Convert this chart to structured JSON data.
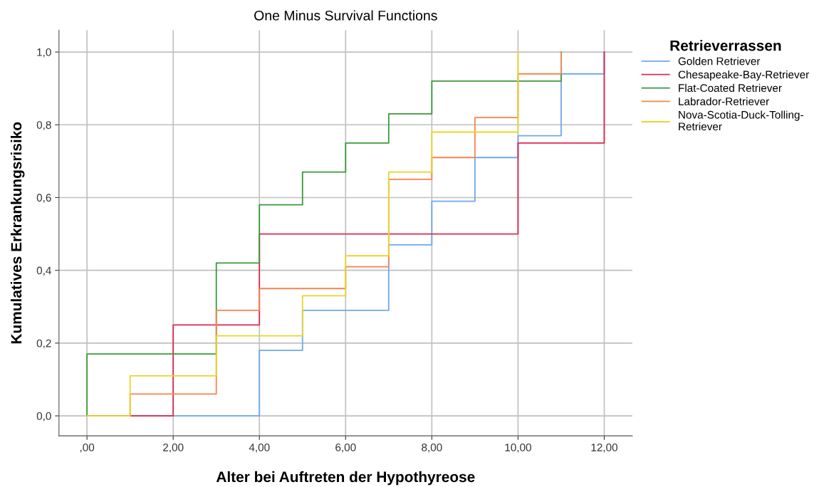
{
  "chart_data": {
    "type": "step",
    "title": "One Minus Survival Functions",
    "xlabel": "Alter bei Auftreten der Hypothyreose",
    "ylabel": "Kumulatives Erkrankungsrisiko",
    "legend_title": "Retrieverrassen",
    "xlim": [
      -0.65,
      12.65
    ],
    "ylim": [
      -0.055,
      1.06
    ],
    "xticks": [
      {
        "value": 0,
        "label": ",00"
      },
      {
        "value": 2,
        "label": "2,00"
      },
      {
        "value": 4,
        "label": "4,00"
      },
      {
        "value": 6,
        "label": "6,00"
      },
      {
        "value": 8,
        "label": "8,00"
      },
      {
        "value": 10,
        "label": "10,00"
      },
      {
        "value": 12,
        "label": "12,00"
      }
    ],
    "yticks": [
      {
        "value": 0,
        "label": "0,0"
      },
      {
        "value": 0.2,
        "label": "0,2"
      },
      {
        "value": 0.4,
        "label": "0,4"
      },
      {
        "value": 0.6,
        "label": "0,6"
      },
      {
        "value": 0.8,
        "label": "0,8"
      },
      {
        "value": 1.0,
        "label": "1,0"
      }
    ],
    "grid": true,
    "legend": "top right",
    "marker": "none",
    "line_style": "solid",
    "series": [
      {
        "name": "Golden Retriever",
        "color": "#6fa8ec",
        "x": [
          0,
          4,
          5,
          7,
          8,
          9,
          10,
          11,
          12
        ],
        "values": [
          0,
          0.18,
          0.29,
          0.47,
          0.59,
          0.71,
          0.77,
          0.94,
          1.0
        ]
      },
      {
        "name": "Chesapeake-Bay-Retriever",
        "color": "#e0284f",
        "x": [
          0,
          2,
          4,
          10,
          12
        ],
        "values": [
          0,
          0.25,
          0.5,
          0.75,
          1.0
        ]
      },
      {
        "name": "Flat-Coated Retriever",
        "color": "#3b9a3b",
        "x": [
          0,
          0,
          3,
          4,
          5,
          6,
          7,
          8,
          11
        ],
        "values": [
          0,
          0.17,
          0.42,
          0.58,
          0.67,
          0.75,
          0.83,
          0.92,
          1.0
        ]
      },
      {
        "name": "Labrador-Retriever",
        "color": "#f5844f",
        "x": [
          0,
          1,
          3,
          4,
          6,
          7,
          8,
          9,
          10,
          11
        ],
        "values": [
          0,
          0.06,
          0.29,
          0.35,
          0.41,
          0.65,
          0.71,
          0.82,
          0.94,
          1.0
        ]
      },
      {
        "name": "Nova-Scotia-Duck-Tolling-\nRetriever",
        "color": "#e8d62a",
        "x": [
          0,
          1,
          3,
          5,
          6,
          7,
          8,
          10
        ],
        "values": [
          0,
          0.11,
          0.22,
          0.33,
          0.44,
          0.67,
          0.78,
          1.0
        ]
      }
    ]
  }
}
